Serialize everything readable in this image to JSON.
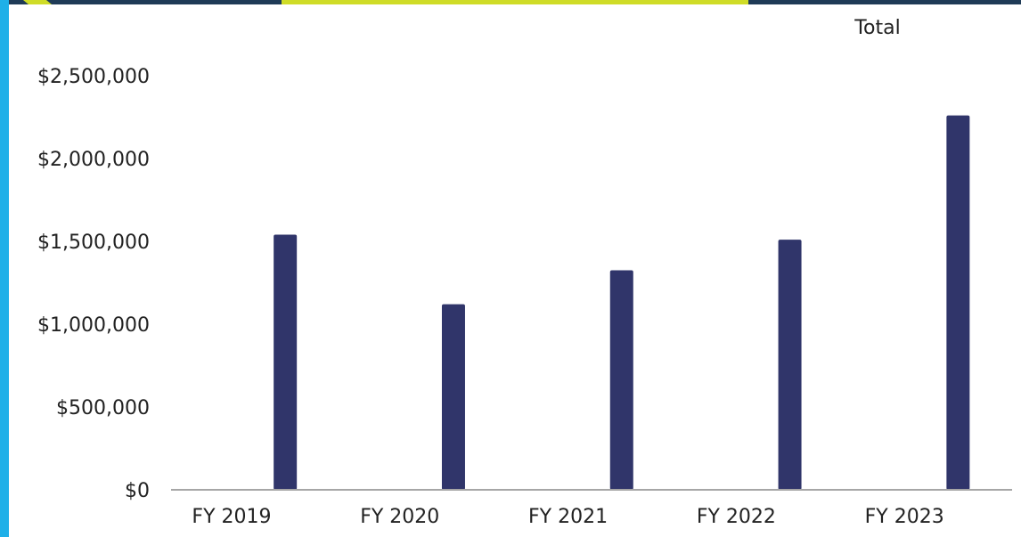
{
  "colors": {
    "bar": "#30356a",
    "axis": "#a6a6a6",
    "text": "#222222",
    "top_band_dark": "#1f3b57",
    "top_band_yellow": "#cfdc27",
    "left_accent_blue": "#1fb0e8"
  },
  "chart_data": {
    "type": "bar",
    "title": "",
    "xlabel": "",
    "ylabel": "",
    "categories": [
      "FY 2019",
      "FY 2020",
      "FY 2021",
      "FY 2022",
      "FY 2023"
    ],
    "series": [
      {
        "name": "Total",
        "values": [
          1540000,
          1120000,
          1325000,
          1510000,
          2260000
        ]
      }
    ],
    "ylim": [
      0,
      2500000
    ],
    "yticks": [
      0,
      500000,
      1000000,
      1500000,
      2000000,
      2500000
    ],
    "ytick_labels": [
      "$0",
      "$500,000",
      "$1,000,000",
      "$1,500,000",
      "$2,000,000",
      "$2,500,000"
    ],
    "grid": false,
    "legend_position": "top-right"
  }
}
